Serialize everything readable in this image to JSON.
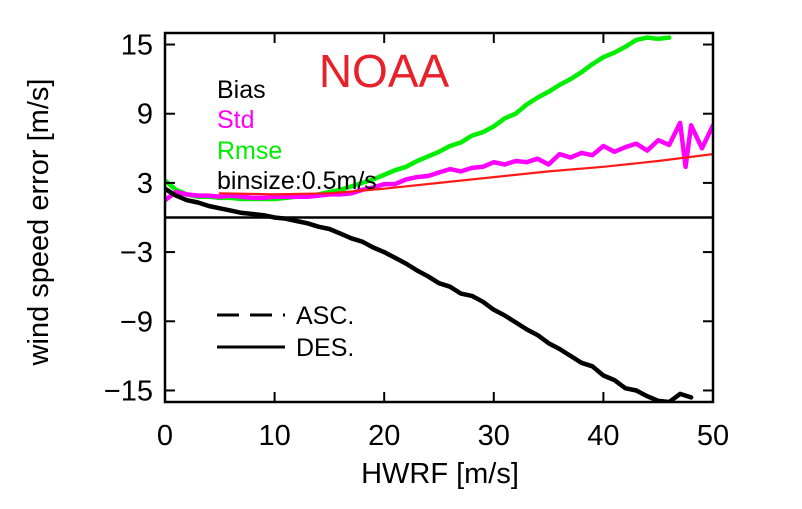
{
  "chart_data": {
    "type": "line",
    "title": "NOAA",
    "title_color": "#e8202a",
    "xlabel": "HWRF [m/s]",
    "ylabel": "wind speed error [m/s]",
    "xlim": [
      0,
      50
    ],
    "ylim": [
      -16,
      16
    ],
    "xticks": [
      0,
      10,
      20,
      30,
      40,
      50
    ],
    "yticks": [
      -15,
      -9,
      -3,
      3,
      9,
      15
    ],
    "ytick_labels": [
      "−15",
      "−9",
      "−3",
      "3",
      "9",
      "15"
    ],
    "grid": false,
    "legend_metrics": [
      {
        "label": "Bias",
        "color": "#000000"
      },
      {
        "label": "Std",
        "color": "#ff00ff"
      },
      {
        "label": "Rmse",
        "color": "#00ee00"
      },
      {
        "label": "binsize:0.5m/s",
        "color": "#000000"
      }
    ],
    "legend_lines": [
      {
        "label": "ASC.",
        "style": "dashed"
      },
      {
        "label": "DES.",
        "style": "solid"
      }
    ],
    "zero_line": 0,
    "series": [
      {
        "name": "Rmse",
        "color": "#00ee00",
        "x": [
          0,
          1,
          2,
          3,
          4,
          5,
          6,
          7,
          8,
          9,
          10,
          11,
          12,
          13,
          14,
          15,
          16,
          17,
          18,
          19,
          20,
          21,
          22,
          23,
          24,
          25,
          26,
          27,
          28,
          29,
          30,
          31,
          32,
          33,
          34,
          35,
          36,
          37,
          38,
          39,
          40,
          41,
          42,
          43,
          44,
          45,
          46
        ],
        "y": [
          3.2,
          2.4,
          2.0,
          1.8,
          1.8,
          1.7,
          1.7,
          1.6,
          1.6,
          1.6,
          1.6,
          1.7,
          1.8,
          1.8,
          2.0,
          2.2,
          2.4,
          2.7,
          3.0,
          3.3,
          3.7,
          4.1,
          4.4,
          4.9,
          5.3,
          5.7,
          6.2,
          6.5,
          7.1,
          7.4,
          7.9,
          8.6,
          9.0,
          9.8,
          10.4,
          10.9,
          11.5,
          12.0,
          12.6,
          13.3,
          13.9,
          14.3,
          14.8,
          15.4,
          15.6,
          15.5,
          15.6
        ]
      },
      {
        "name": "Std",
        "color": "#ff00ff",
        "x": [
          0,
          1,
          2,
          3,
          4,
          5,
          6,
          7,
          8,
          9,
          10,
          11,
          12,
          13,
          14,
          15,
          16,
          17,
          18,
          19,
          20,
          21,
          22,
          23,
          24,
          25,
          26,
          27,
          28,
          29,
          30,
          31,
          32,
          33,
          34,
          35,
          36,
          37,
          38,
          39,
          40,
          41,
          42,
          43,
          44,
          45,
          46,
          47,
          47.5,
          48,
          49,
          50
        ],
        "y": [
          1.5,
          2.2,
          2.0,
          1.9,
          1.9,
          1.8,
          1.9,
          1.8,
          1.7,
          1.7,
          1.8,
          1.8,
          1.8,
          1.8,
          1.9,
          2.0,
          2.0,
          2.1,
          2.4,
          2.6,
          2.9,
          2.9,
          3.3,
          3.5,
          3.6,
          3.9,
          4.2,
          4.0,
          4.3,
          4.4,
          4.8,
          4.6,
          4.9,
          4.8,
          5.1,
          4.6,
          5.5,
          5.2,
          5.6,
          5.4,
          6.2,
          5.7,
          6.1,
          6.4,
          5.8,
          6.7,
          6.3,
          8.2,
          4.4,
          8.0,
          6.0,
          8.0
        ]
      },
      {
        "name": "Std fit",
        "color": "#ff1a1a",
        "x": [
          5,
          10,
          15,
          20,
          25,
          30,
          35,
          40,
          45,
          50
        ],
        "y": [
          2.1,
          2.0,
          2.1,
          2.5,
          3.0,
          3.5,
          4.0,
          4.4,
          4.9,
          5.5
        ]
      },
      {
        "name": "Bias",
        "color": "#000000",
        "x": [
          0,
          1,
          2,
          3,
          4,
          5,
          6,
          7,
          8,
          9,
          10,
          11,
          12,
          13,
          14,
          15,
          16,
          17,
          18,
          19,
          20,
          21,
          22,
          23,
          24,
          25,
          26,
          27,
          28,
          29,
          30,
          31,
          32,
          33,
          34,
          35,
          36,
          37,
          38,
          39,
          40,
          41,
          42,
          43,
          44,
          45,
          46,
          47,
          48
        ],
        "y": [
          2.5,
          1.9,
          1.5,
          1.3,
          1.0,
          0.8,
          0.6,
          0.4,
          0.3,
          0.2,
          0.0,
          -0.1,
          -0.3,
          -0.5,
          -0.8,
          -1.0,
          -1.4,
          -1.8,
          -2.1,
          -2.6,
          -3.0,
          -3.5,
          -4.0,
          -4.6,
          -5.1,
          -5.7,
          -6.0,
          -6.6,
          -6.8,
          -7.3,
          -8.0,
          -8.5,
          -9.1,
          -9.7,
          -10.2,
          -10.9,
          -11.4,
          -12.0,
          -12.6,
          -12.9,
          -13.7,
          -14.1,
          -14.8,
          -15.0,
          -15.5,
          -15.9,
          -16.0,
          -15.3,
          -15.6
        ]
      }
    ]
  }
}
